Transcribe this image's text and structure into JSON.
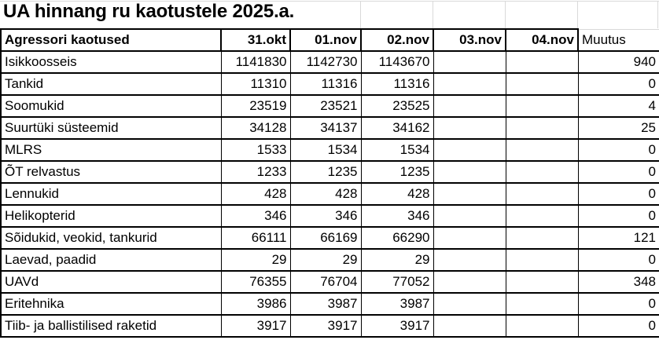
{
  "title": "UA hinnang ru kaotustele 2025.a.",
  "table": {
    "header": {
      "label": "Agressori kaotused",
      "dates": [
        "31.okt",
        "01.nov",
        "02.nov",
        "03.nov",
        "04.nov"
      ],
      "change": "Muutus"
    },
    "rows": [
      {
        "label": "Isikkoosseis",
        "values": [
          "1141830",
          "1142730",
          "1143670",
          "",
          ""
        ],
        "change": "940"
      },
      {
        "label": "Tankid",
        "values": [
          "11310",
          "11316",
          "11316",
          "",
          ""
        ],
        "change": "0"
      },
      {
        "label": "Soomukid",
        "values": [
          "23519",
          "23521",
          "23525",
          "",
          ""
        ],
        "change": "4"
      },
      {
        "label": "Suurtüki süsteemid",
        "values": [
          "34128",
          "34137",
          "34162",
          "",
          ""
        ],
        "change": "25"
      },
      {
        "label": "MLRS",
        "values": [
          "1533",
          "1534",
          "1534",
          "",
          ""
        ],
        "change": "0"
      },
      {
        "label": "ÕT relvastus",
        "values": [
          "1233",
          "1235",
          "1235",
          "",
          ""
        ],
        "change": "0"
      },
      {
        "label": "Lennukid",
        "values": [
          "428",
          "428",
          "428",
          "",
          ""
        ],
        "change": "0"
      },
      {
        "label": "Helikopterid",
        "values": [
          "346",
          "346",
          "346",
          "",
          ""
        ],
        "change": "0"
      },
      {
        "label": "Sõidukid, veokid, tankurid",
        "values": [
          "66111",
          "66169",
          "66290",
          "",
          ""
        ],
        "change": "121"
      },
      {
        "label": "Laevad, paadid",
        "values": [
          "29",
          "29",
          "29",
          "",
          ""
        ],
        "change": "0"
      },
      {
        "label": "UAVd",
        "values": [
          "76355",
          "76704",
          "77052",
          "",
          ""
        ],
        "change": "348"
      },
      {
        "label": "Eritehnika",
        "values": [
          "3986",
          "3987",
          "3987",
          "",
          ""
        ],
        "change": "0"
      },
      {
        "label": "Tiib- ja ballistilised raketid",
        "values": [
          "3917",
          "3917",
          "3917",
          "",
          ""
        ],
        "change": "0"
      }
    ]
  },
  "colors": {
    "text": "#000000",
    "background": "#ffffff",
    "table_border": "#000000",
    "gridline": "#d9d9d9"
  }
}
